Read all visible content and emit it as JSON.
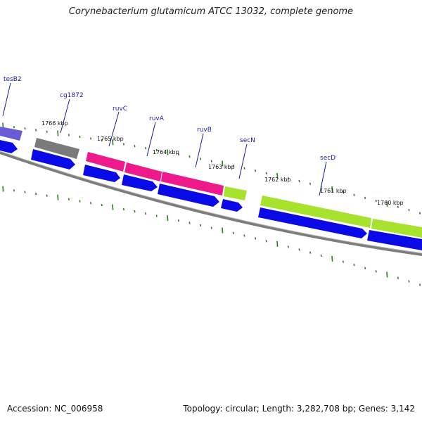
{
  "header": {
    "title": "Corynebacterium glutamicum ATCC 13032, complete genome"
  },
  "footer": {
    "accession_label": "Accession: NC_006958",
    "topology_label": "Topology: circular; Length: 3,282,708 bp; Genes: 3,142"
  },
  "colors": {
    "backbone": "#7d7d7d",
    "cds_strand": "#0a0ae6",
    "tick": "#2e7d1e",
    "tesB2": "#6a5cd6",
    "cg1872": "#7a7a7a",
    "ruv": "#ee1a8c",
    "sec": "#a6e22e",
    "label": "#1a1aa8"
  },
  "genes": [
    {
      "name": "tesB2",
      "color_key": "tesB2"
    },
    {
      "name": "cg1872",
      "color_key": "cg1872"
    },
    {
      "name": "ruvC",
      "color_key": "ruv"
    },
    {
      "name": "ruvA",
      "color_key": "ruv"
    },
    {
      "name": "ruvB",
      "color_key": "ruv"
    },
    {
      "name": "secN",
      "color_key": "sec"
    },
    {
      "name": "secD",
      "color_key": "sec"
    }
  ],
  "scale_labels": [
    "1766 kbp",
    "1765 kbp",
    "1764 kbp",
    "1763 kbp",
    "1762 kbp",
    "1761 kbp",
    "1760 kbp"
  ]
}
